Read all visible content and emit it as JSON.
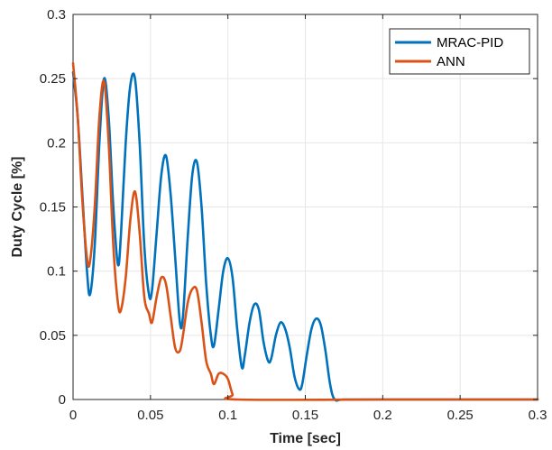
{
  "chart_data": {
    "type": "line",
    "title": "",
    "xlabel": "Time [sec]",
    "ylabel": "Duty Cycle [%]",
    "xlim": [
      0,
      0.3
    ],
    "ylim": [
      0,
      0.3
    ],
    "x_ticks": [
      0,
      0.05,
      0.1,
      0.15,
      0.2,
      0.25,
      0.3
    ],
    "x_tick_labels": [
      "0",
      "0.05",
      "0.1",
      "0.15",
      "0.2",
      "0.25",
      "0.3"
    ],
    "y_ticks": [
      0,
      0.05,
      0.1,
      0.15,
      0.2,
      0.25,
      0.3
    ],
    "y_tick_labels": [
      "0",
      "0.05",
      "0.1",
      "0.15",
      "0.2",
      "0.25",
      "0.3"
    ],
    "grid": true,
    "legend_position": "top-right",
    "series": [
      {
        "name": "MRAC-PID",
        "color": "#0072BD",
        "x": [
          0,
          0.003,
          0.006,
          0.009,
          0.011,
          0.014,
          0.017,
          0.02,
          0.023,
          0.026,
          0.029,
          0.031,
          0.034,
          0.037,
          0.04,
          0.043,
          0.046,
          0.049,
          0.051,
          0.054,
          0.057,
          0.06,
          0.063,
          0.066,
          0.069,
          0.071,
          0.074,
          0.077,
          0.08,
          0.083,
          0.086,
          0.089,
          0.091,
          0.094,
          0.097,
          0.1,
          0.103,
          0.106,
          0.109,
          0.111,
          0.114,
          0.117,
          0.12,
          0.123,
          0.126,
          0.128,
          0.131,
          0.134,
          0.137,
          0.14,
          0.143,
          0.146,
          0.148,
          0.151,
          0.154,
          0.157,
          0.16,
          0.163,
          0.166,
          0.169,
          0.175,
          0.2,
          0.25,
          0.3
        ],
        "y": [
          0.255,
          0.22,
          0.16,
          0.1,
          0.082,
          0.12,
          0.2,
          0.25,
          0.22,
          0.15,
          0.105,
          0.13,
          0.2,
          0.245,
          0.25,
          0.2,
          0.12,
          0.082,
          0.085,
          0.13,
          0.175,
          0.19,
          0.16,
          0.11,
          0.06,
          0.065,
          0.125,
          0.175,
          0.185,
          0.15,
          0.09,
          0.05,
          0.042,
          0.07,
          0.1,
          0.11,
          0.095,
          0.055,
          0.025,
          0.035,
          0.06,
          0.074,
          0.07,
          0.045,
          0.03,
          0.032,
          0.05,
          0.06,
          0.055,
          0.04,
          0.018,
          0.008,
          0.012,
          0.035,
          0.055,
          0.063,
          0.058,
          0.038,
          0.012,
          0.0,
          0.0,
          0.0,
          0.0,
          0.0
        ]
      },
      {
        "name": "ANN",
        "color": "#D95319",
        "x": [
          0,
          0.003,
          0.006,
          0.009,
          0.011,
          0.014,
          0.017,
          0.02,
          0.023,
          0.026,
          0.029,
          0.031,
          0.034,
          0.037,
          0.04,
          0.043,
          0.046,
          0.049,
          0.051,
          0.054,
          0.057,
          0.06,
          0.063,
          0.066,
          0.069,
          0.071,
          0.074,
          0.077,
          0.08,
          0.083,
          0.086,
          0.089,
          0.091,
          0.094,
          0.097,
          0.1,
          0.103,
          0.106,
          0.2,
          0.25,
          0.3
        ],
        "y": [
          0.262,
          0.22,
          0.155,
          0.11,
          0.108,
          0.15,
          0.22,
          0.248,
          0.2,
          0.12,
          0.075,
          0.07,
          0.095,
          0.14,
          0.162,
          0.13,
          0.08,
          0.067,
          0.06,
          0.08,
          0.095,
          0.09,
          0.065,
          0.04,
          0.038,
          0.05,
          0.075,
          0.086,
          0.085,
          0.06,
          0.03,
          0.02,
          0.012,
          0.02,
          0.02,
          0.016,
          0.004,
          0.0,
          0.0,
          0.0,
          0.0
        ]
      }
    ]
  }
}
